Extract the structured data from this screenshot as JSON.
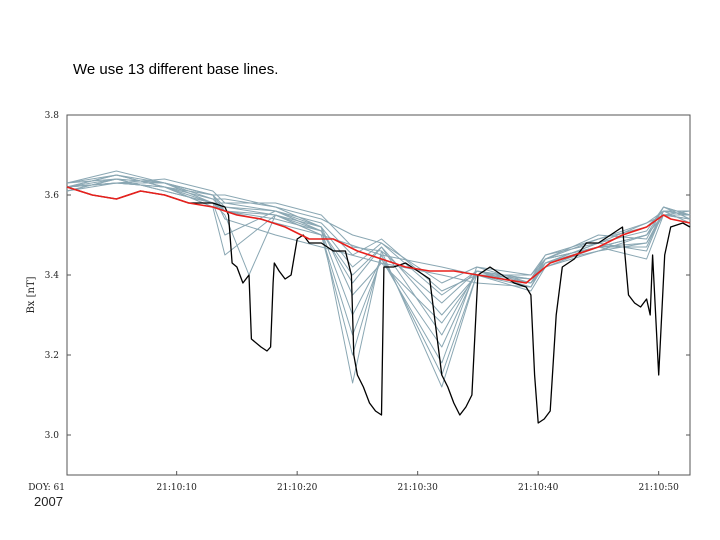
{
  "slide": {
    "title": "We use 13 different base lines.",
    "footer_year": "2007"
  },
  "chart_data": {
    "type": "line",
    "title": "",
    "xlabel": "",
    "ylabel": "Bx [nT]",
    "x_unit": "seconds after 21:10:00",
    "xlim": [
      -4.1,
      47.6
    ],
    "ylim": [
      2.9,
      3.8
    ],
    "y_ticks": [
      3.0,
      3.2,
      3.4,
      3.6,
      3.8
    ],
    "y_tick_labels": [
      "3.0",
      "3.2",
      "3.4",
      "3.6",
      "3.8"
    ],
    "x_ticks": [
      -4.1,
      5,
      15,
      25,
      35,
      45
    ],
    "x_tick_labels": [
      "DOY: 61",
      "21:10:10",
      "21:10:20",
      "21:10:30",
      "21:10:40",
      "21:10:50"
    ],
    "grid": false,
    "colors": {
      "measured": "#000000",
      "corrected": "#e8201c",
      "baselines": "#8aa7b3"
    },
    "series": [
      {
        "role": "measured",
        "x": [
          -4.1,
          -2,
          0,
          2,
          4,
          6,
          8,
          9,
          9.3,
          9.6,
          10,
          10.5,
          11,
          11.2,
          12,
          12.5,
          12.8,
          13,
          13.1,
          13.5,
          14,
          14.5,
          15,
          15.5,
          16,
          17,
          18,
          19,
          19.5,
          19.7,
          20,
          20.5,
          21,
          21.5,
          22,
          22.2,
          23,
          24,
          25,
          26,
          27,
          27.5,
          28,
          28.5,
          29,
          29.5,
          30,
          31,
          32,
          33,
          34,
          34.4,
          34.7,
          35,
          35.5,
          36,
          36.5,
          37,
          38,
          39,
          40,
          41,
          42,
          42.5,
          43,
          43.5,
          44,
          44.3,
          44.5,
          45,
          45.5,
          46,
          47,
          47.6
        ],
        "y": [
          3.62,
          3.6,
          3.59,
          3.61,
          3.6,
          3.58,
          3.58,
          3.57,
          3.55,
          3.43,
          3.42,
          3.38,
          3.4,
          3.24,
          3.22,
          3.21,
          3.22,
          3.38,
          3.43,
          3.41,
          3.39,
          3.4,
          3.49,
          3.5,
          3.48,
          3.48,
          3.46,
          3.46,
          3.4,
          3.2,
          3.15,
          3.12,
          3.08,
          3.06,
          3.05,
          3.42,
          3.42,
          3.43,
          3.41,
          3.39,
          3.15,
          3.12,
          3.08,
          3.05,
          3.07,
          3.1,
          3.4,
          3.42,
          3.4,
          3.38,
          3.37,
          3.35,
          3.15,
          3.03,
          3.04,
          3.06,
          3.3,
          3.42,
          3.44,
          3.48,
          3.48,
          3.5,
          3.52,
          3.35,
          3.33,
          3.32,
          3.34,
          3.3,
          3.45,
          3.15,
          3.45,
          3.52,
          3.53,
          3.52
        ]
      },
      {
        "role": "corrected",
        "x": [
          -4.1,
          -2,
          0,
          2,
          4,
          6,
          8,
          10,
          12,
          14,
          16,
          18,
          20,
          22,
          24,
          26,
          28,
          30,
          32,
          34,
          36,
          38,
          40,
          42,
          44,
          45.4,
          46,
          47.6
        ],
        "y": [
          3.62,
          3.6,
          3.59,
          3.61,
          3.6,
          3.58,
          3.57,
          3.55,
          3.54,
          3.52,
          3.49,
          3.49,
          3.46,
          3.44,
          3.42,
          3.41,
          3.41,
          3.4,
          3.39,
          3.38,
          3.43,
          3.45,
          3.47,
          3.5,
          3.52,
          3.55,
          3.54,
          3.53
        ]
      },
      {
        "role": "baseline",
        "x": [
          -4.1,
          0,
          4,
          8,
          9,
          13.2,
          17,
          22,
          27,
          29.9,
          34.4,
          35.6,
          40,
          44,
          45.4,
          47.6
        ],
        "y": [
          3.62,
          3.63,
          3.62,
          3.58,
          3.56,
          3.55,
          3.5,
          3.45,
          3.42,
          3.4,
          3.38,
          3.43,
          3.48,
          3.53,
          3.55,
          3.54
        ]
      },
      {
        "role": "baseline",
        "x": [
          -4.1,
          0,
          4,
          8,
          9,
          13.2,
          17,
          22,
          27,
          29.9,
          34.4,
          35.6,
          40,
          44,
          45.4,
          47.6
        ],
        "y": [
          3.63,
          3.64,
          3.63,
          3.6,
          3.54,
          3.5,
          3.47,
          3.43,
          3.4,
          3.38,
          3.37,
          3.44,
          3.49,
          3.52,
          3.56,
          3.55
        ]
      },
      {
        "role": "baseline",
        "x": [
          -4.1,
          0,
          4,
          8,
          9,
          13.2,
          17,
          19.6,
          22,
          27,
          29.9,
          34.4,
          35.6,
          40,
          44,
          45.4,
          47.6
        ],
        "y": [
          3.61,
          3.64,
          3.61,
          3.58,
          3.5,
          3.56,
          3.52,
          3.35,
          3.43,
          3.28,
          3.4,
          3.36,
          3.42,
          3.47,
          3.5,
          3.57,
          3.54
        ]
      },
      {
        "role": "baseline",
        "x": [
          -4.1,
          0,
          4,
          8,
          9,
          13.2,
          17,
          19.6,
          22,
          27,
          29.9,
          34.4,
          35.6,
          40,
          44,
          45.4,
          47.6
        ],
        "y": [
          3.62,
          3.63,
          3.62,
          3.57,
          3.45,
          3.55,
          3.51,
          3.3,
          3.44,
          3.22,
          3.41,
          3.37,
          3.43,
          3.46,
          3.5,
          3.55,
          3.55
        ]
      },
      {
        "role": "baseline",
        "x": [
          -4.1,
          0,
          4,
          8,
          9,
          11,
          13.2,
          17,
          19.6,
          22,
          27,
          29.9,
          34.4,
          35.6,
          40,
          44,
          45.4,
          47.6
        ],
        "y": [
          3.62,
          3.65,
          3.63,
          3.58,
          3.55,
          3.4,
          3.55,
          3.5,
          3.25,
          3.44,
          3.18,
          3.42,
          3.38,
          3.44,
          3.47,
          3.48,
          3.55,
          3.56
        ]
      },
      {
        "role": "baseline",
        "x": [
          -4.1,
          0,
          4,
          8,
          9,
          13.2,
          17,
          19.6,
          22,
          27,
          29.9,
          34.4,
          35.6,
          40,
          44,
          45.4,
          47.6
        ],
        "y": [
          3.63,
          3.66,
          3.63,
          3.6,
          3.56,
          3.53,
          3.5,
          3.2,
          3.45,
          3.15,
          3.4,
          3.39,
          3.45,
          3.48,
          3.46,
          3.56,
          3.55
        ]
      },
      {
        "role": "baseline",
        "x": [
          -4.1,
          0,
          4,
          8,
          9,
          13.2,
          17,
          19.6,
          22,
          27,
          29.9,
          34.4,
          35.6,
          40,
          44,
          45.4,
          47.6
        ],
        "y": [
          3.61,
          3.63,
          3.62,
          3.57,
          3.57,
          3.55,
          3.52,
          3.13,
          3.46,
          3.12,
          3.4,
          3.4,
          3.44,
          3.47,
          3.44,
          3.55,
          3.54
        ]
      },
      {
        "role": "baseline",
        "x": [
          -4.1,
          0,
          4,
          8,
          9,
          13.2,
          17,
          19.6,
          22,
          27,
          29.9,
          34.4,
          35.6,
          40,
          44,
          45.4,
          47.6
        ],
        "y": [
          3.62,
          3.64,
          3.61,
          3.58,
          3.58,
          3.56,
          3.51,
          3.38,
          3.47,
          3.3,
          3.4,
          3.38,
          3.42,
          3.46,
          3.48,
          3.56,
          3.53
        ]
      },
      {
        "role": "baseline",
        "x": [
          -4.1,
          0,
          4,
          8,
          9,
          13.2,
          17,
          19.6,
          22,
          27,
          29.9,
          34.4,
          35.6,
          40,
          44,
          45.4,
          47.6
        ],
        "y": [
          3.62,
          3.63,
          3.63,
          3.59,
          3.59,
          3.57,
          3.52,
          3.42,
          3.48,
          3.35,
          3.41,
          3.39,
          3.43,
          3.48,
          3.51,
          3.57,
          3.55
        ]
      },
      {
        "role": "baseline",
        "x": [
          -4.1,
          0,
          4,
          8,
          9,
          13.2,
          17,
          19.6,
          22,
          27,
          29.9,
          34.4,
          35.6,
          40,
          44,
          45.4,
          47.6
        ],
        "y": [
          3.63,
          3.65,
          3.62,
          3.6,
          3.6,
          3.57,
          3.54,
          3.5,
          3.48,
          3.38,
          3.42,
          3.4,
          3.45,
          3.49,
          3.53,
          3.56,
          3.56
        ]
      },
      {
        "role": "baseline",
        "x": [
          -4.1,
          0,
          4,
          8,
          9,
          13.2,
          17,
          19.6,
          22,
          27,
          29.9,
          34.4,
          35.6,
          40,
          44,
          45.4,
          47.6
        ],
        "y": [
          3.62,
          3.63,
          3.64,
          3.61,
          3.58,
          3.58,
          3.55,
          3.47,
          3.46,
          3.33,
          3.41,
          3.38,
          3.44,
          3.5,
          3.49,
          3.57,
          3.55
        ]
      },
      {
        "role": "baseline",
        "x": [
          -4.1,
          0,
          4,
          8,
          9,
          13.2,
          17,
          19.6,
          22,
          27,
          29.9,
          34.4,
          35.6,
          40,
          44,
          45.4,
          47.6
        ],
        "y": [
          3.61,
          3.64,
          3.63,
          3.6,
          3.57,
          3.56,
          3.53,
          3.45,
          3.49,
          3.36,
          3.4,
          3.37,
          3.43,
          3.47,
          3.5,
          3.55,
          3.54
        ]
      },
      {
        "role": "baseline",
        "x": [
          -4.1,
          0,
          4,
          8,
          9,
          13.2,
          17,
          19.6,
          22,
          27,
          29.9,
          34.4,
          35.6,
          40,
          44,
          45.4,
          47.6
        ],
        "y": [
          3.62,
          3.65,
          3.62,
          3.59,
          3.56,
          3.54,
          3.51,
          3.4,
          3.47,
          3.25,
          3.41,
          3.39,
          3.44,
          3.47,
          3.47,
          3.56,
          3.55
        ]
      }
    ]
  }
}
